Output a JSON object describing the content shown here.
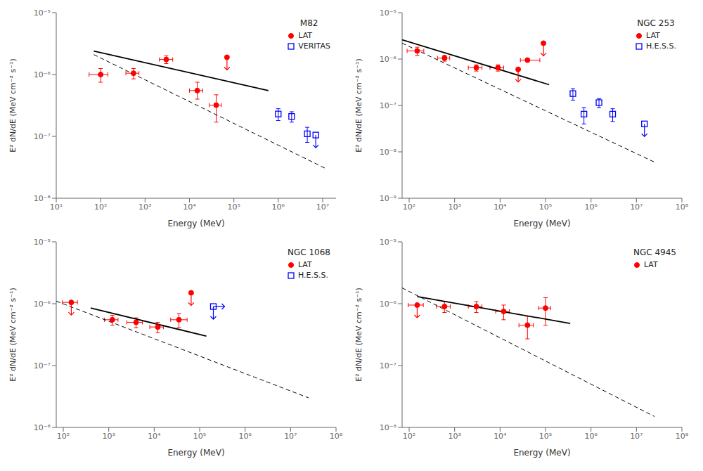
{
  "chart_data": [
    {
      "type": "scatter",
      "title": "M82",
      "xlabel": "Energy (MeV)",
      "ylabel": "E² dN/dE (MeV cm⁻² s⁻¹)",
      "log": true,
      "legend": "upper right",
      "xlim": [
        10,
        20000000
      ],
      "ylim": [
        1e-08,
        1e-05
      ],
      "xticks": [
        {
          "value": 10,
          "label": "10¹"
        },
        {
          "value": 100,
          "label": "10²"
        },
        {
          "value": 1000,
          "label": "10³"
        },
        {
          "value": 10000,
          "label": "10⁴"
        },
        {
          "value": 100000,
          "label": "10⁵"
        },
        {
          "value": 1000000,
          "label": "10⁶"
        },
        {
          "value": 10000000,
          "label": "10⁷"
        }
      ],
      "yticks": [
        {
          "value": 1e-08,
          "label": "10⁻⁸"
        },
        {
          "value": 1e-07,
          "label": "10⁻⁷"
        },
        {
          "value": 1e-06,
          "label": "10⁻⁶"
        },
        {
          "value": 1e-05,
          "label": "10⁻⁵"
        }
      ],
      "series": [
        {
          "type": "line",
          "line_style": "dashed",
          "color": "#000000",
          "x": [
            70,
            12000000
          ],
          "values": [
            2.1e-06,
            3e-08
          ]
        },
        {
          "type": "line",
          "line_style": "solid",
          "color": "#000000",
          "x": [
            70,
            600000
          ],
          "values": [
            2.4e-06,
            5.5e-07
          ]
        },
        {
          "name": "LAT",
          "type": "scatter",
          "marker": "circle",
          "color": "#ff0000",
          "x": [
            100,
            550,
            3000,
            15000,
            40000,
            70000
          ],
          "values": [
            1e-06,
            1.05e-06,
            1.75e-06,
            5.5e-07,
            3.2e-07,
            1.9e-06
          ],
          "xerr_lo": [
            45,
            180,
            900,
            5000,
            12000,
            0
          ],
          "xerr_hi": [
            45,
            180,
            1200,
            5000,
            12000,
            0
          ],
          "yerr_lo": [
            2.5e-07,
            2e-07,
            2.5e-07,
            1.5e-07,
            1.5e-07,
            0
          ],
          "yerr_hi": [
            2.5e-07,
            2e-07,
            2.5e-07,
            2e-07,
            1.5e-07,
            0
          ],
          "upper_limit": [
            false,
            false,
            false,
            false,
            false,
            true
          ]
        },
        {
          "name": "VERITAS",
          "type": "scatter",
          "marker": "square",
          "color": "#0000ff",
          "x": [
            1000000,
            2000000,
            4500000,
            7000000
          ],
          "values": [
            2.3e-07,
            2.1e-07,
            1.1e-07,
            1.05e-07
          ],
          "yerr_lo": [
            5e-08,
            4e-08,
            3e-08,
            0
          ],
          "yerr_hi": [
            5e-08,
            4e-08,
            3e-08,
            0
          ],
          "upper_limit": [
            false,
            false,
            false,
            true
          ]
        }
      ]
    },
    {
      "type": "scatter",
      "title": "NGC 253",
      "xlabel": "Energy (MeV)",
      "ylabel": "E² dN/dE (MeV cm⁻² s⁻¹)",
      "log": true,
      "legend": "upper right",
      "xlim": [
        70,
        100000000
      ],
      "ylim": [
        1e-09,
        1e-05
      ],
      "xticks": [
        {
          "value": 100,
          "label": "10²"
        },
        {
          "value": 1000,
          "label": "10³"
        },
        {
          "value": 10000,
          "label": "10⁴"
        },
        {
          "value": 100000,
          "label": "10⁵"
        },
        {
          "value": 1000000,
          "label": "10⁶"
        },
        {
          "value": 10000000,
          "label": "10⁷"
        },
        {
          "value": 100000000,
          "label": "10⁸"
        }
      ],
      "yticks": [
        {
          "value": 1e-09,
          "label": "10⁻⁹"
        },
        {
          "value": 1e-08,
          "label": "10⁻⁸"
        },
        {
          "value": 1e-07,
          "label": "10⁻⁷"
        },
        {
          "value": 1e-06,
          "label": "10⁻⁶"
        },
        {
          "value": 1e-05,
          "label": "10⁻⁵"
        }
      ],
      "series": [
        {
          "type": "line",
          "line_style": "dashed",
          "color": "#000000",
          "x": [
            70,
            25000000
          ],
          "values": [
            2.2e-06,
            6e-09
          ]
        },
        {
          "type": "line",
          "line_style": "solid",
          "color": "#000000",
          "x": [
            70,
            120000
          ],
          "values": [
            2.6e-06,
            2.8e-07
          ]
        },
        {
          "name": "LAT",
          "type": "scatter",
          "marker": "circle",
          "color": "#ff0000",
          "x": [
            150,
            600,
            3000,
            9000,
            25000,
            40000,
            90000
          ],
          "values": [
            1.5e-06,
            1.05e-06,
            6.5e-07,
            6.5e-07,
            6e-07,
            9.5e-07,
            2.2e-06
          ],
          "xerr_lo": [
            60,
            180,
            1000,
            3000,
            0,
            12000,
            0
          ],
          "xerr_hi": [
            60,
            180,
            1000,
            3000,
            0,
            35000,
            0
          ],
          "yerr_lo": [
            3e-07,
            1.5e-07,
            1e-07,
            1e-07,
            0,
            0,
            0
          ],
          "yerr_hi": [
            3e-07,
            1.5e-07,
            1e-07,
            1e-07,
            0,
            0,
            0
          ],
          "upper_limit": [
            false,
            false,
            false,
            false,
            true,
            false,
            true
          ]
        },
        {
          "name": "H.E.S.S.",
          "type": "scatter",
          "marker": "square",
          "color": "#0000ff",
          "x": [
            400000,
            700000,
            1500000,
            3000000,
            15000000
          ],
          "values": [
            1.8e-07,
            6.5e-08,
            1.15e-07,
            6.5e-08,
            4e-08
          ],
          "yerr_lo": [
            5e-08,
            2.5e-08,
            2.5e-08,
            2e-08,
            0
          ],
          "yerr_hi": [
            5e-08,
            2.5e-08,
            2.5e-08,
            2e-08,
            0
          ],
          "upper_limit": [
            false,
            false,
            false,
            false,
            true
          ]
        }
      ]
    },
    {
      "type": "scatter",
      "title": "NGC 1068",
      "xlabel": "Energy (MeV)",
      "ylabel": "E² dN/dE (MeV cm⁻² s⁻¹)",
      "log": true,
      "legend": "upper right",
      "xlim": [
        70,
        100000000
      ],
      "ylim": [
        1e-08,
        1e-05
      ],
      "xticks": [
        {
          "value": 100,
          "label": "10²"
        },
        {
          "value": 1000,
          "label": "10³"
        },
        {
          "value": 10000,
          "label": "10⁴"
        },
        {
          "value": 100000,
          "label": "10⁵"
        },
        {
          "value": 1000000,
          "label": "10⁶"
        },
        {
          "value": 10000000,
          "label": "10⁷"
        },
        {
          "value": 100000000,
          "label": "10⁸"
        }
      ],
      "yticks": [
        {
          "value": 1e-08,
          "label": "10⁻⁸"
        },
        {
          "value": 1e-07,
          "label": "10⁻⁷"
        },
        {
          "value": 1e-06,
          "label": "10⁻⁶"
        },
        {
          "value": 1e-05,
          "label": "10⁻⁵"
        }
      ],
      "series": [
        {
          "type": "line",
          "line_style": "dashed",
          "color": "#000000",
          "x": [
            70,
            25000000
          ],
          "values": [
            1.1e-06,
            3e-08
          ]
        },
        {
          "type": "line",
          "line_style": "solid",
          "color": "#000000",
          "x": [
            400,
            140000
          ],
          "values": [
            8.5e-07,
            3e-07
          ]
        },
        {
          "name": "LAT",
          "type": "scatter",
          "marker": "circle",
          "color": "#ff0000",
          "x": [
            150,
            1200,
            4000,
            12000,
            35000,
            65000
          ],
          "values": [
            1.05e-06,
            5.5e-07,
            5e-07,
            4.2e-07,
            5.5e-07,
            1.5e-06
          ],
          "xerr_lo": [
            55,
            400,
            1500,
            4000,
            12000,
            0
          ],
          "xerr_hi": [
            55,
            400,
            1500,
            4000,
            18000,
            0
          ],
          "yerr_lo": [
            0,
            1e-07,
            9e-08,
            8e-08,
            1.4e-07,
            0
          ],
          "yerr_hi": [
            0,
            1e-07,
            9e-08,
            8e-08,
            1.4e-07,
            0
          ],
          "upper_limit": [
            true,
            false,
            false,
            false,
            false,
            true
          ]
        },
        {
          "name": "H.E.S.S.",
          "type": "scatter",
          "marker": "square",
          "color": "#0000ff",
          "x": [
            200000
          ],
          "values": [
            9e-07
          ],
          "yerr_lo": [
            0
          ],
          "yerr_hi": [
            0
          ],
          "upper_limit": [
            true
          ],
          "right_arrow": [
            true
          ]
        }
      ]
    },
    {
      "type": "scatter",
      "title": "NGC 4945",
      "xlabel": "Energy (MeV)",
      "ylabel": "E² dN/dE (MeV cm⁻² s⁻¹)",
      "log": true,
      "legend": "upper right",
      "xlim": [
        70,
        100000000
      ],
      "ylim": [
        1e-08,
        1e-05
      ],
      "xticks": [
        {
          "value": 100,
          "label": "10²"
        },
        {
          "value": 1000,
          "label": "10³"
        },
        {
          "value": 10000,
          "label": "10⁴"
        },
        {
          "value": 100000,
          "label": "10⁵"
        },
        {
          "value": 1000000,
          "label": "10⁶"
        },
        {
          "value": 10000000,
          "label": "10⁷"
        },
        {
          "value": 100000000,
          "label": "10⁸"
        }
      ],
      "yticks": [
        {
          "value": 1e-08,
          "label": "10⁻⁸"
        },
        {
          "value": 1e-07,
          "label": "10⁻⁷"
        },
        {
          "value": 1e-06,
          "label": "10⁻⁶"
        },
        {
          "value": 1e-05,
          "label": "10⁻⁵"
        }
      ],
      "series": [
        {
          "type": "line",
          "line_style": "dashed",
          "color": "#000000",
          "x": [
            70,
            25000000
          ],
          "values": [
            1.8e-06,
            1.5e-08
          ]
        },
        {
          "type": "line",
          "line_style": "solid",
          "color": "#000000",
          "x": [
            150,
            350000
          ],
          "values": [
            1.3e-06,
            4.8e-07
          ]
        },
        {
          "name": "LAT",
          "type": "scatter",
          "marker": "circle",
          "color": "#ff0000",
          "x": [
            150,
            600,
            3000,
            12000,
            40000,
            100000
          ],
          "values": [
            9.5e-07,
            9e-07,
            9e-07,
            7.5e-07,
            4.5e-07,
            8.5e-07
          ],
          "xerr_lo": [
            55,
            200,
            1000,
            4000,
            14000,
            30000
          ],
          "xerr_hi": [
            55,
            200,
            1000,
            4000,
            14000,
            30000
          ],
          "yerr_lo": [
            0,
            1.8e-07,
            1.8e-07,
            2e-07,
            1.8e-07,
            4e-07
          ],
          "yerr_hi": [
            0,
            1.8e-07,
            1.8e-07,
            2e-07,
            1.8e-07,
            4e-07
          ],
          "upper_limit": [
            true,
            false,
            false,
            false,
            false,
            false
          ]
        }
      ]
    }
  ]
}
